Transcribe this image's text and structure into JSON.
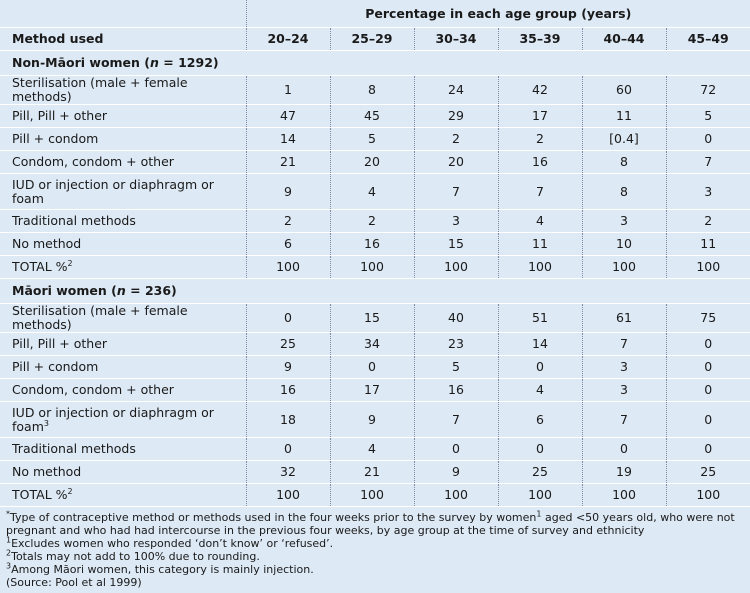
{
  "table": {
    "header": {
      "span_title": "Percentage in each age group (years)",
      "method": "Method used",
      "ages": [
        "20–24",
        "25–29",
        "30–34",
        "35–39",
        "40–44",
        "45–49"
      ]
    },
    "sections": [
      {
        "title": [
          "Non-Māori women (",
          "n",
          " = 1292)"
        ],
        "rows": [
          {
            "label": "Sterilisation (male + female methods)",
            "values": [
              1,
              8,
              24,
              42,
              60,
              72
            ]
          },
          {
            "label": "Pill, Pill + other",
            "values": [
              47,
              45,
              29,
              17,
              11,
              5
            ]
          },
          {
            "label": "Pill + condom",
            "values": [
              14,
              5,
              2,
              2,
              "[0.4]",
              0
            ]
          },
          {
            "label": "Condom, condom + other",
            "values": [
              21,
              20,
              20,
              16,
              8,
              7
            ]
          },
          {
            "label": "IUD or injection or diaphragm or foam",
            "values": [
              9,
              4,
              7,
              7,
              8,
              3
            ]
          },
          {
            "label": "Traditional methods",
            "values": [
              2,
              2,
              3,
              4,
              3,
              2
            ]
          },
          {
            "label": "No method",
            "values": [
              6,
              16,
              15,
              11,
              10,
              11
            ]
          },
          {
            "label": "TOTAL %",
            "sup": "2",
            "values": [
              100,
              100,
              100,
              100,
              100,
              100
            ]
          }
        ]
      },
      {
        "title": [
          "Māori women (",
          "n",
          " = 236)"
        ],
        "rows": [
          {
            "label": "Sterilisation (male + female methods)",
            "values": [
              0,
              15,
              40,
              51,
              61,
              75
            ]
          },
          {
            "label": "Pill, Pill + other",
            "values": [
              25,
              34,
              23,
              14,
              7,
              0
            ]
          },
          {
            "label": "Pill + condom",
            "values": [
              9,
              0,
              5,
              0,
              3,
              0
            ]
          },
          {
            "label": "Condom, condom + other",
            "values": [
              16,
              17,
              16,
              4,
              3,
              0
            ]
          },
          {
            "label": "IUD or injection or diaphragm or foam",
            "sup": "3",
            "values": [
              18,
              9,
              7,
              6,
              7,
              0
            ]
          },
          {
            "label": "Traditional methods",
            "values": [
              0,
              4,
              0,
              0,
              0,
              0
            ]
          },
          {
            "label": "No method",
            "values": [
              32,
              21,
              9,
              25,
              19,
              25
            ]
          },
          {
            "label": "TOTAL %",
            "sup": "2",
            "values": [
              100,
              100,
              100,
              100,
              100,
              100
            ]
          }
        ]
      }
    ]
  },
  "footnotes": [
    [
      "*",
      "Type of contraceptive method or methods used in the four weeks prior to the survey by women",
      "1",
      " aged <50 years old, who were not pregnant and who had had intercourse in the previous four weeks, by age group at the time of survey and ethnicity"
    ],
    [
      "1",
      "Excludes women who responded ‘don’t know’ or ‘refused’."
    ],
    [
      "2",
      "Totals may not add to 100% due to rounding."
    ],
    [
      "3",
      "Among Māori women, this category is mainly injection."
    ],
    [
      "(Source: Pool et al 1999)"
    ]
  ]
}
